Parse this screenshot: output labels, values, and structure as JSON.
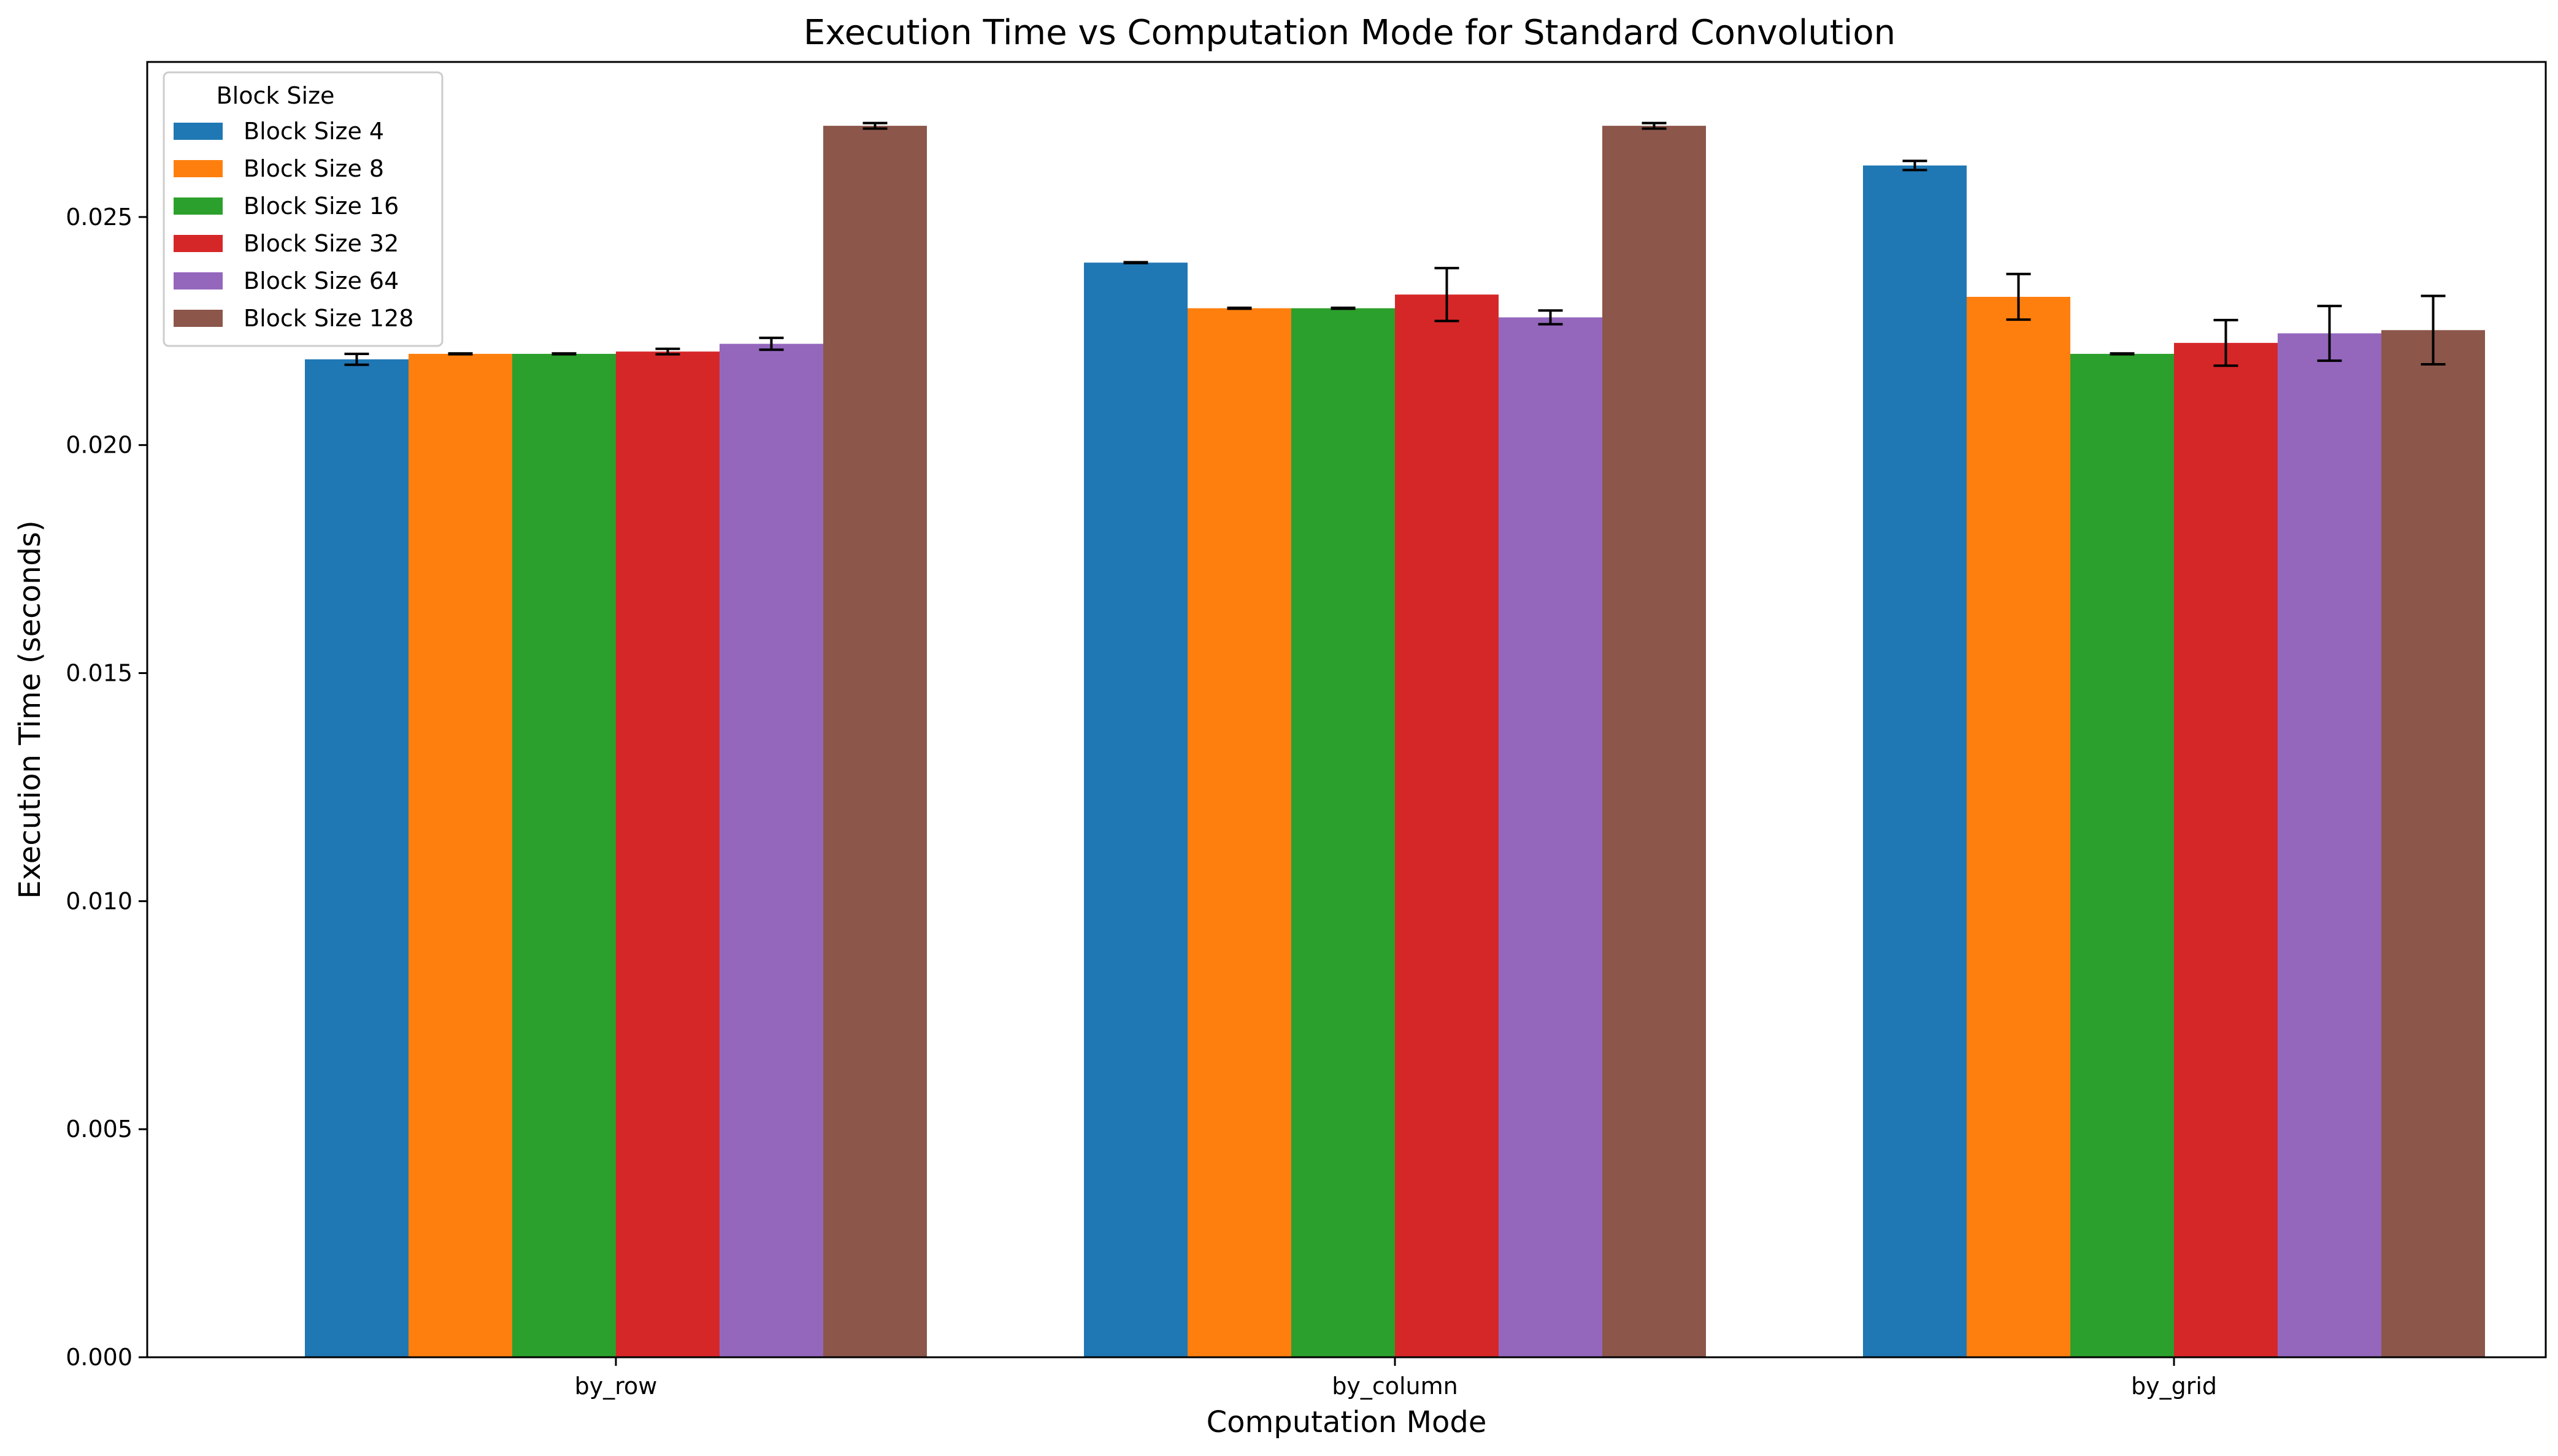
{
  "chart_data": {
    "type": "bar",
    "title": "Execution Time vs Computation Mode for Standard Convolution",
    "xlabel": "Computation Mode",
    "ylabel": "Execution Time (seconds)",
    "categories": [
      "by_row",
      "by_column",
      "by_grid"
    ],
    "ylim": [
      0,
      0.0284
    ],
    "yticks": [
      "0.000",
      "0.005",
      "0.010",
      "0.015",
      "0.020",
      "0.025"
    ],
    "legend": {
      "title": "Block Size",
      "placement": "upper-left"
    },
    "grid": false,
    "series": [
      {
        "name": "Block Size 4",
        "color": "#1f77b4",
        "values": [
          0.02188,
          0.024,
          0.02613
        ],
        "errors": [
          0.00012,
          1e-05,
          0.0001
        ]
      },
      {
        "name": "Block Size 8",
        "color": "#ff7f0e",
        "values": [
          0.022,
          0.023,
          0.02325
        ],
        "errors": [
          1e-05,
          1e-05,
          0.0005
        ]
      },
      {
        "name": "Block Size 16",
        "color": "#2ca02c",
        "values": [
          0.022,
          0.023,
          0.022
        ],
        "errors": [
          1e-05,
          1e-05,
          1e-05
        ]
      },
      {
        "name": "Block Size 32",
        "color": "#d62728",
        "values": [
          0.02205,
          0.0233,
          0.02224
        ],
        "errors": [
          6e-05,
          0.00058,
          0.0005
        ]
      },
      {
        "name": "Block Size 64",
        "color": "#9467bd",
        "values": [
          0.02222,
          0.0228,
          0.02245
        ],
        "errors": [
          0.00013,
          0.00015,
          0.0006
        ]
      },
      {
        "name": "Block Size 128",
        "color": "#8c564b",
        "values": [
          0.027,
          0.027,
          0.02252
        ],
        "errors": [
          6e-05,
          6e-05,
          0.00075
        ]
      }
    ]
  }
}
